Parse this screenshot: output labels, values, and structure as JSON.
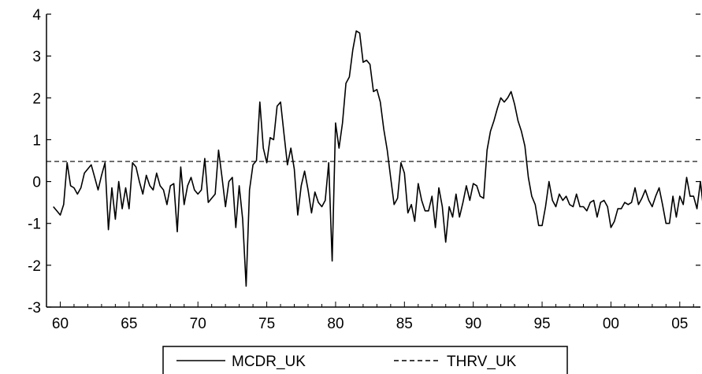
{
  "chart_data": {
    "type": "line",
    "title": "",
    "xlabel": "",
    "ylabel": "",
    "x_start": 1959.5,
    "x_step": 0.25,
    "xlim": [
      1959,
      2006.5
    ],
    "ylim": [
      -3,
      4
    ],
    "x_tick_values": [
      1960,
      1965,
      1970,
      1975,
      1980,
      1985,
      1990,
      1995,
      2000,
      2005
    ],
    "x_tick_labels": [
      "60",
      "65",
      "70",
      "75",
      "80",
      "85",
      "90",
      "95",
      "00",
      "05"
    ],
    "y_tick_values": [
      -3,
      -2,
      -1,
      0,
      1,
      2,
      3,
      4
    ],
    "y_tick_labels": [
      "-3",
      "-2",
      "-1",
      "0",
      "1",
      "2",
      "3",
      "4"
    ],
    "grid": false,
    "legend_position": "bottom-center",
    "series": [
      {
        "name": "MCDR_UK",
        "style": "solid",
        "color": "#000000",
        "values": [
          -0.6,
          -0.7,
          -0.8,
          -0.55,
          0.45,
          -0.1,
          -0.15,
          -0.3,
          -0.15,
          0.2,
          0.3,
          0.4,
          0.1,
          -0.2,
          0.15,
          0.45,
          -1.15,
          -0.15,
          -0.9,
          0.0,
          -0.65,
          -0.15,
          -0.65,
          0.45,
          0.35,
          0.0,
          -0.3,
          0.15,
          -0.1,
          -0.2,
          0.2,
          -0.1,
          -0.2,
          -0.55,
          -0.1,
          -0.05,
          -1.2,
          0.35,
          -0.55,
          -0.1,
          0.1,
          -0.2,
          -0.3,
          -0.2,
          0.55,
          -0.5,
          -0.4,
          -0.3,
          0.75,
          0.1,
          -0.6,
          0.0,
          0.1,
          -1.1,
          -0.1,
          -0.9,
          -2.5,
          -0.2,
          0.4,
          0.5,
          1.9,
          0.8,
          0.45,
          1.05,
          1.0,
          1.8,
          1.9,
          1.15,
          0.4,
          0.8,
          0.3,
          -0.8,
          -0.1,
          0.25,
          -0.2,
          -0.75,
          -0.25,
          -0.5,
          -0.6,
          -0.45,
          0.45,
          -1.9,
          1.4,
          0.8,
          1.4,
          2.35,
          2.5,
          3.15,
          3.6,
          3.55,
          2.85,
          2.9,
          2.8,
          2.15,
          2.2,
          1.9,
          1.25,
          0.75,
          0.1,
          -0.55,
          -0.4,
          0.45,
          0.2,
          -0.75,
          -0.55,
          -0.95,
          -0.05,
          -0.45,
          -0.7,
          -0.7,
          -0.35,
          -1.1,
          -0.15,
          -0.6,
          -1.45,
          -0.6,
          -0.85,
          -0.3,
          -0.85,
          -0.5,
          -0.1,
          -0.45,
          -0.05,
          -0.1,
          -0.35,
          -0.4,
          0.75,
          1.2,
          1.45,
          1.75,
          2.0,
          1.9,
          2.0,
          2.15,
          1.85,
          1.45,
          1.2,
          0.85,
          0.1,
          -0.35,
          -0.55,
          -1.05,
          -1.05,
          -0.6,
          0.0,
          -0.45,
          -0.6,
          -0.3,
          -0.45,
          -0.35,
          -0.55,
          -0.6,
          -0.3,
          -0.6,
          -0.6,
          -0.7,
          -0.5,
          -0.45,
          -0.85,
          -0.5,
          -0.45,
          -0.6,
          -1.1,
          -0.95,
          -0.65,
          -0.65,
          -0.5,
          -0.55,
          -0.5,
          -0.15,
          -0.55,
          -0.4,
          -0.2,
          -0.45,
          -0.6,
          -0.35,
          -0.15,
          -0.55,
          -1.0,
          -1.0,
          -0.35,
          -0.85,
          -0.35,
          -0.55,
          0.1,
          -0.35,
          -0.35,
          -0.65,
          0.0,
          -0.75,
          -0.7
        ]
      },
      {
        "name": "THRV_UK",
        "style": "dashed",
        "color": "#000000",
        "constant": 0.48
      }
    ]
  }
}
